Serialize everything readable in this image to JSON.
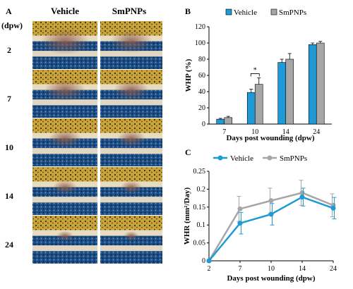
{
  "panel_a": {
    "letter": "A",
    "unit_label": "(dpw)",
    "columns": [
      "Vehicle",
      "SmPNPs"
    ],
    "rows": [
      "2",
      "7",
      "10",
      "14",
      "24"
    ]
  },
  "colors": {
    "vehicle": "#1f9ad6",
    "smpnps": "#a6a6a6",
    "axis": "#000000"
  },
  "chart_data": [
    {
      "panel": "B",
      "type": "bar",
      "categories": [
        "7",
        "10",
        "14",
        "24"
      ],
      "series": [
        {
          "name": "Vehicle",
          "values": [
            6,
            39,
            76,
            98
          ],
          "errors": [
            1,
            4,
            4,
            2
          ]
        },
        {
          "name": "SmPNPs",
          "values": [
            8,
            49,
            80,
            100
          ],
          "errors": [
            1.5,
            8,
            7,
            2
          ]
        }
      ],
      "xlabel": "Days post wounding (dpw)",
      "ylabel": "WHP (%)",
      "ylim": [
        0,
        120
      ],
      "yticks": [
        0,
        20,
        40,
        60,
        80,
        100,
        120
      ],
      "significance": {
        "category": "10",
        "label": "*"
      },
      "legend": "top"
    },
    {
      "panel": "C",
      "type": "line",
      "x": [
        "2",
        "7",
        "10",
        "14",
        "24"
      ],
      "series": [
        {
          "name": "Vehicle",
          "values": [
            0,
            0.105,
            0.13,
            0.178,
            0.147
          ],
          "errors": [
            0,
            0.03,
            0.03,
            0.025,
            0.03
          ]
        },
        {
          "name": "SmPNPs",
          "values": [
            0,
            0.145,
            0.168,
            0.19,
            0.155
          ],
          "errors": [
            0,
            0.035,
            0.035,
            0.035,
            0.032
          ]
        }
      ],
      "xlabel": "Days post wounding (dpw)",
      "ylabel": "WHR (mm²/Day)",
      "ylim": [
        0,
        0.25
      ],
      "yticks": [
        0,
        0.05,
        0.1,
        0.15,
        0.2,
        0.25
      ],
      "legend": "top"
    }
  ]
}
